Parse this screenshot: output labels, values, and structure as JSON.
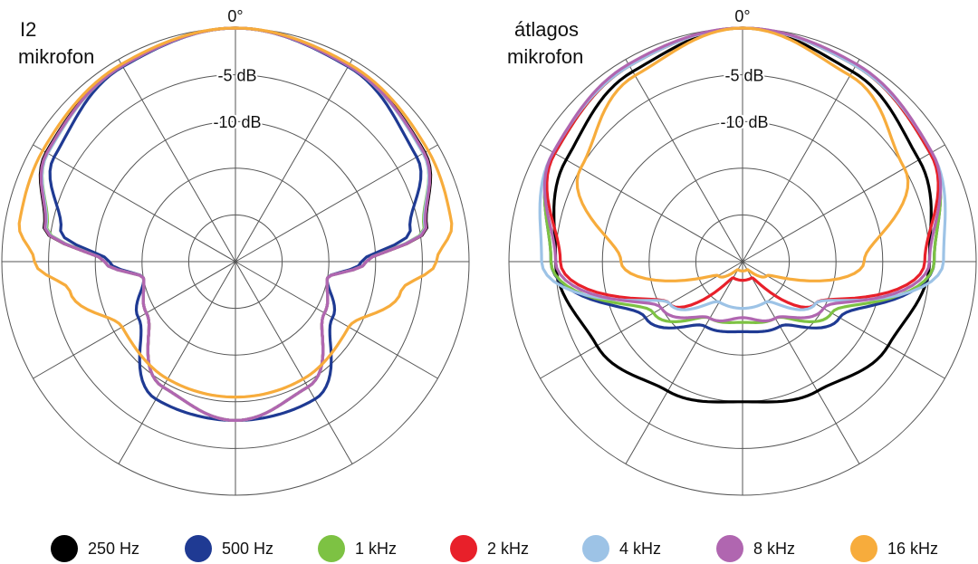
{
  "charts": [
    {
      "title_line1": "I2",
      "title_line2": "mikrofon"
    },
    {
      "title_line1": "átlagos",
      "title_line2": "mikrofon"
    }
  ],
  "chart_data": [
    {
      "type": "polar",
      "title": "I2 mikrofon",
      "angle_label": "0°",
      "radial_labels": [
        "-5 dB",
        "-10 dB"
      ],
      "radial_range_db": [
        -25,
        0
      ],
      "ring_step_db": 5,
      "spoke_step_deg": 30,
      "series": [
        {
          "name": "250 Hz",
          "color": "#000000",
          "angles_deg": [
            0,
            30,
            60,
            80,
            90,
            100,
            120,
            150,
            180
          ],
          "level_db": [
            0,
            -0.8,
            -1.6,
            -4.2,
            -11,
            -15,
            -14,
            -9.5,
            -8.0
          ]
        },
        {
          "name": "500 Hz",
          "color": "#1f3a93",
          "angles_deg": [
            0,
            30,
            60,
            80,
            90,
            100,
            120,
            150,
            180
          ],
          "level_db": [
            0,
            -0.9,
            -2.6,
            -6.0,
            -11.5,
            -15,
            -13,
            -8.0,
            -8.0
          ]
        },
        {
          "name": "1 kHz",
          "color": "#7dc243",
          "angles_deg": [
            0,
            30,
            60,
            80,
            90,
            100,
            120,
            150,
            180
          ],
          "level_db": [
            0,
            -0.8,
            -1.8,
            -4.5,
            -11,
            -15,
            -14,
            -9.5,
            -8.0
          ]
        },
        {
          "name": "2 kHz",
          "color": "#e8202a",
          "angles_deg": [
            0,
            30,
            60,
            80,
            90,
            100,
            120,
            150,
            180
          ],
          "level_db": [
            0,
            -0.8,
            -1.7,
            -4.3,
            -11,
            -15,
            -14,
            -9.5,
            -8.0
          ]
        },
        {
          "name": "4 kHz",
          "color": "#9dc3e6",
          "angles_deg": [
            0,
            30,
            60,
            80,
            90,
            100,
            120,
            150,
            180
          ],
          "level_db": [
            0,
            -0.8,
            -1.8,
            -4.4,
            -11,
            -15,
            -14,
            -9.5,
            -8.0
          ]
        },
        {
          "name": "8 kHz",
          "color": "#b066b0",
          "angles_deg": [
            0,
            30,
            60,
            80,
            90,
            100,
            120,
            150,
            180
          ],
          "level_db": [
            0,
            -0.8,
            -1.7,
            -4.3,
            -11,
            -15,
            -14,
            -9.5,
            -8.0
          ]
        },
        {
          "name": "16 kHz",
          "color": "#f7ac3c",
          "angles_deg": [
            0,
            30,
            60,
            80,
            90,
            100,
            120,
            150,
            180
          ],
          "level_db": [
            0,
            -0.6,
            -1.2,
            -1.5,
            -3.5,
            -7.0,
            -11,
            -10.5,
            -10.5
          ]
        }
      ]
    },
    {
      "type": "polar",
      "title": "átlagos mikrofon",
      "angle_label": "0°",
      "radial_labels": [
        "-5 dB",
        "-10 dB"
      ],
      "radial_range_db": [
        -25,
        0
      ],
      "ring_step_db": 5,
      "spoke_step_deg": 30,
      "series": [
        {
          "name": "250 Hz",
          "color": "#000000",
          "angles_deg": [
            0,
            30,
            60,
            90,
            120,
            150,
            180
          ],
          "level_db": [
            0,
            -1.5,
            -3.2,
            -5.0,
            -7.0,
            -9.0,
            -10.0
          ]
        },
        {
          "name": "500 Hz",
          "color": "#1f3a93",
          "angles_deg": [
            0,
            30,
            60,
            90,
            120,
            150,
            180
          ],
          "level_db": [
            0,
            -0.8,
            -1.8,
            -4.5,
            -13,
            -17,
            -17.5
          ]
        },
        {
          "name": "1 kHz",
          "color": "#7dc243",
          "angles_deg": [
            0,
            30,
            60,
            90,
            120,
            150,
            180
          ],
          "level_db": [
            0,
            -0.8,
            -1.8,
            -4.5,
            -14,
            -18,
            -18.5
          ]
        },
        {
          "name": "2 kHz",
          "color": "#e8202a",
          "angles_deg": [
            0,
            30,
            60,
            90,
            120,
            150,
            180
          ],
          "level_db": [
            0,
            -0.8,
            -1.8,
            -5.5,
            -16,
            -23,
            -23
          ]
        },
        {
          "name": "4 kHz",
          "color": "#9dc3e6",
          "angles_deg": [
            0,
            30,
            60,
            90,
            120,
            150,
            180
          ],
          "level_db": [
            0,
            -0.8,
            -1.6,
            -3.5,
            -16,
            -20,
            -20
          ]
        },
        {
          "name": "8 kHz",
          "color": "#b066b0",
          "angles_deg": [
            0,
            30,
            60,
            90,
            120,
            150,
            180
          ],
          "level_db": [
            0,
            -0.6,
            -1.6,
            -5.0,
            -15,
            -18,
            -19
          ]
        },
        {
          "name": "16 kHz",
          "color": "#f7ac3c",
          "angles_deg": [
            0,
            30,
            60,
            90,
            120,
            150,
            180
          ],
          "level_db": [
            0,
            -2.0,
            -5.0,
            -12,
            -22,
            -24,
            -24
          ]
        }
      ]
    }
  ],
  "legend": [
    {
      "label": "250 Hz",
      "color": "#000000"
    },
    {
      "label": "500 Hz",
      "color": "#1f3a93"
    },
    {
      "label": "1 kHz",
      "color": "#7dc243"
    },
    {
      "label": "2 kHz",
      "color": "#e8202a"
    },
    {
      "label": "4 kHz",
      "color": "#9dc3e6"
    },
    {
      "label": "8 kHz",
      "color": "#b066b0"
    },
    {
      "label": "16 kHz",
      "color": "#f7ac3c"
    }
  ]
}
